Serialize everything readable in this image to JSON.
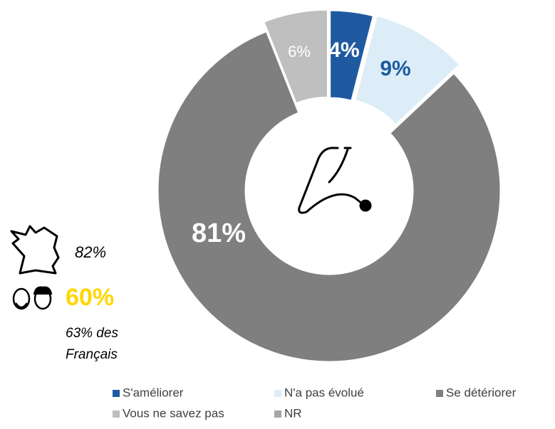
{
  "chart_data": {
    "type": "donut",
    "series": [
      {
        "name": "S'améliorer",
        "color": "#1f5aa0",
        "values": [
          4
        ],
        "value_labels": [
          "4%"
        ]
      },
      {
        "name": "N'a pas évolué",
        "color": "#dcedf7",
        "values": [
          9
        ],
        "value_labels": [
          "9%"
        ]
      },
      {
        "name": "Se détériorer",
        "color": "#7f7f7f",
        "values": [
          81
        ],
        "value_labels": [
          "81%"
        ]
      },
      {
        "name": "Vous ne savez pas",
        "color": "#bfbfbf",
        "values": [
          6
        ],
        "value_labels": [
          "6%"
        ]
      },
      {
        "name": "NR",
        "color": "#a6a6a6",
        "values": [
          0
        ]
      }
    ],
    "annotations": [
      {
        "text": "82%"
      },
      {
        "text": "60%",
        "color": "#ffd700"
      },
      {
        "lines": [
          "63% des",
          "Français"
        ]
      }
    ]
  }
}
